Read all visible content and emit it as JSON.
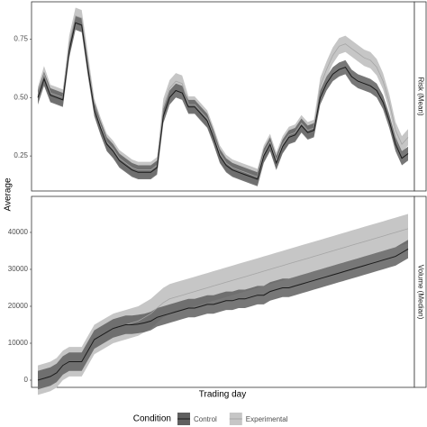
{
  "chart_data": {
    "type": "line",
    "y_title": "Average",
    "x_title": "Trading day",
    "legend_title": "Condition",
    "legend_position": "bottom",
    "conditions": [
      {
        "name": "Control",
        "color": "#5f5f5f",
        "line_color": "#1a1a1a"
      },
      {
        "name": "Experimental",
        "color": "#c6c6c6",
        "line_color": "#a5a5a5"
      }
    ],
    "x": [
      1,
      2,
      3,
      4,
      5,
      6,
      7,
      8,
      9,
      10,
      11,
      12,
      13,
      14,
      15,
      16,
      17,
      18,
      19,
      20,
      21,
      22,
      23,
      24,
      25,
      26,
      27,
      28,
      29,
      30,
      31,
      32,
      33,
      34,
      35,
      36,
      37,
      38,
      39,
      40,
      41,
      42,
      43,
      44,
      45,
      46,
      47,
      48,
      49,
      50,
      51,
      52,
      53,
      54,
      55,
      56,
      57,
      58,
      59,
      60
    ],
    "xlim": [
      0,
      61
    ],
    "panels": [
      {
        "strip": "Risk (Mean)",
        "ylim": [
          0.1,
          0.91
        ],
        "yticks": [
          0.25,
          {
            "value": 0.5,
            "label": "0.50"
          },
          0.75
        ],
        "series": [
          {
            "values": [
              0.5,
              0.58,
              0.51,
              0.5,
              0.49,
              0.7,
              0.82,
              0.81,
              0.62,
              0.45,
              0.37,
              0.3,
              0.27,
              0.23,
              0.21,
              0.19,
              0.18,
              0.18,
              0.18,
              0.2,
              0.42,
              0.5,
              0.53,
              0.52,
              0.46,
              0.46,
              0.43,
              0.4,
              0.33,
              0.25,
              0.21,
              0.19,
              0.18,
              0.17,
              0.16,
              0.15,
              0.25,
              0.3,
              0.22,
              0.29,
              0.33,
              0.34,
              0.38,
              0.35,
              0.36,
              0.5,
              0.56,
              0.6,
              0.62,
              0.63,
              0.59,
              0.57,
              0.56,
              0.55,
              0.53,
              0.48,
              0.4,
              0.3,
              0.24,
              0.26
            ],
            "error": 0.03
          },
          {
            "values": [
              0.51,
              0.6,
              0.52,
              0.51,
              0.5,
              0.73,
              0.85,
              0.84,
              0.65,
              0.46,
              0.38,
              0.31,
              0.28,
              0.24,
              0.22,
              0.2,
              0.19,
              0.19,
              0.19,
              0.21,
              0.46,
              0.54,
              0.57,
              0.56,
              0.47,
              0.47,
              0.44,
              0.41,
              0.34,
              0.26,
              0.22,
              0.2,
              0.19,
              0.18,
              0.17,
              0.16,
              0.26,
              0.31,
              0.23,
              0.3,
              0.34,
              0.35,
              0.39,
              0.36,
              0.37,
              0.55,
              0.62,
              0.68,
              0.72,
              0.73,
              0.71,
              0.69,
              0.67,
              0.66,
              0.63,
              0.57,
              0.48,
              0.36,
              0.3,
              0.33
            ],
            "error": 0.035
          }
        ]
      },
      {
        "strip": "Volume (Median)",
        "ylim": [
          -1950,
          49750
        ],
        "yticks": [
          0,
          10000,
          20000,
          30000,
          40000
        ],
        "series": [
          {
            "values": [
              0,
              500,
              1000,
              2000,
              4000,
              5000,
              5000,
              5000,
              8000,
              11000,
              12000,
              13000,
              14000,
              14500,
              15000,
              15000,
              15200,
              15500,
              16000,
              17000,
              17500,
              18000,
              18500,
              19000,
              19500,
              19500,
              20000,
              20500,
              20500,
              21000,
              21500,
              21500,
              22000,
              22000,
              22500,
              23000,
              23000,
              24000,
              24500,
              25000,
              25000,
              25500,
              26000,
              26500,
              27000,
              27500,
              28000,
              28500,
              29000,
              29500,
              30000,
              30500,
              31000,
              31500,
              32000,
              32500,
              33000,
              33500,
              34500,
              35500
            ],
            "error": 2500
          },
          {
            "values": [
              0,
              500,
              1000,
              2000,
              4000,
              5000,
              5000,
              5000,
              8000,
              11000,
              12000,
              13000,
              14000,
              14500,
              15000,
              15500,
              16000,
              17000,
              18000,
              19500,
              21000,
              22000,
              22500,
              23000,
              23500,
              24000,
              24500,
              25000,
              25500,
              26000,
              26500,
              27000,
              27500,
              28000,
              28500,
              29000,
              29500,
              30000,
              30500,
              31000,
              31500,
              32000,
              32500,
              33000,
              33500,
              34000,
              34500,
              35000,
              35500,
              36000,
              36500,
              37000,
              37500,
              38000,
              38500,
              39000,
              39500,
              40000,
              40500,
              41000
            ],
            "error": 4000
          }
        ]
      }
    ]
  }
}
